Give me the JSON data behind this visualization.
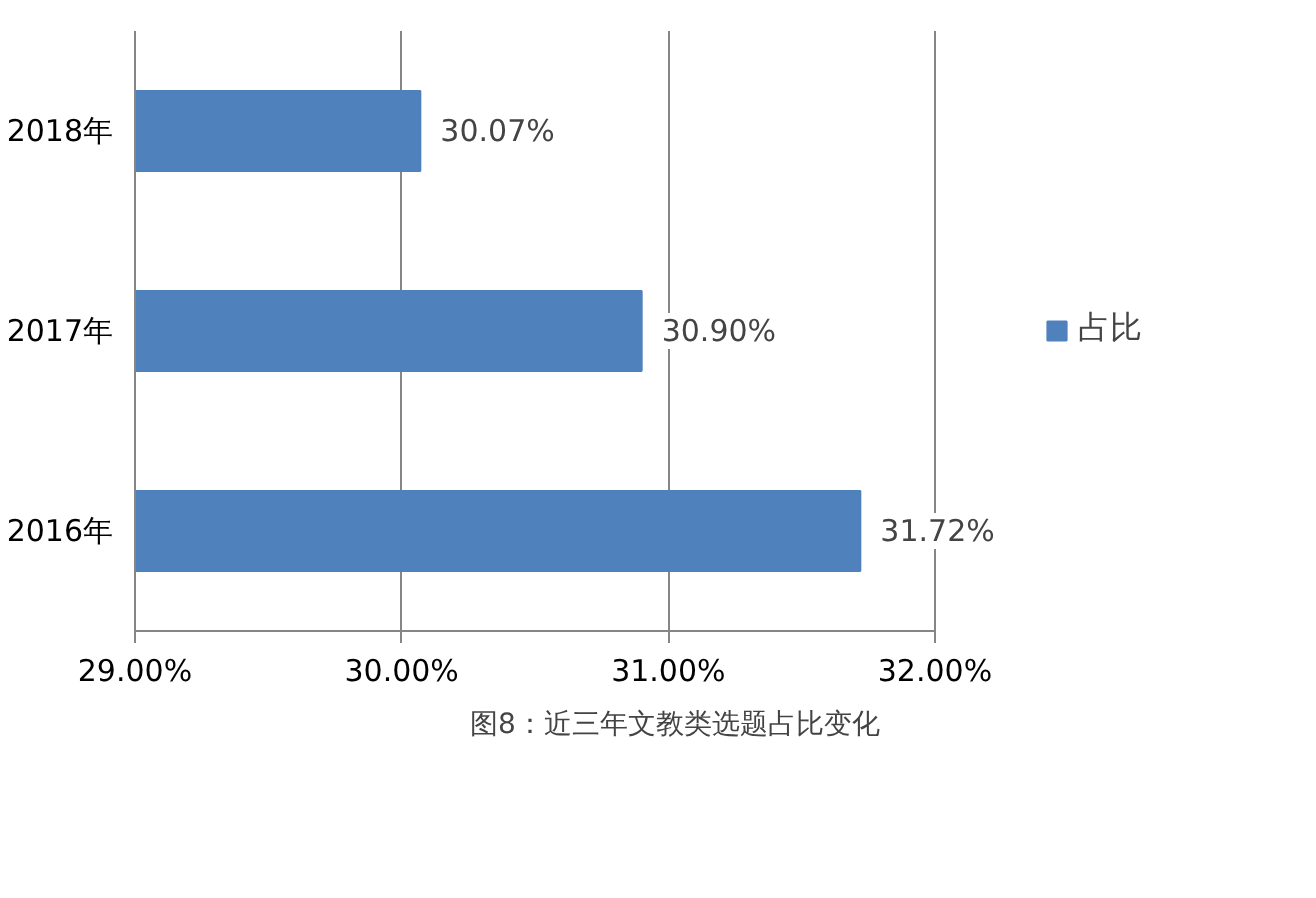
{
  "chart_data": {
    "type": "bar",
    "orientation": "horizontal",
    "title": "图8：近三年文教类选题占比变化",
    "categories": [
      "2018年",
      "2017年",
      "2016年"
    ],
    "series": [
      {
        "name": "占比",
        "color": "#4f81bd",
        "values": [
          30.07,
          30.9,
          31.72
        ],
        "value_labels": [
          "30.07%",
          "30.90%",
          "31.72%"
        ]
      }
    ],
    "xlim": [
      29,
      32
    ],
    "xticks": [
      {
        "value": 29,
        "label": "29.00%"
      },
      {
        "value": 30,
        "label": "30.00%"
      },
      {
        "value": 31,
        "label": "31.00%"
      },
      {
        "value": 32,
        "label": "32.00%"
      }
    ],
    "grid": "x",
    "legend": "right"
  }
}
